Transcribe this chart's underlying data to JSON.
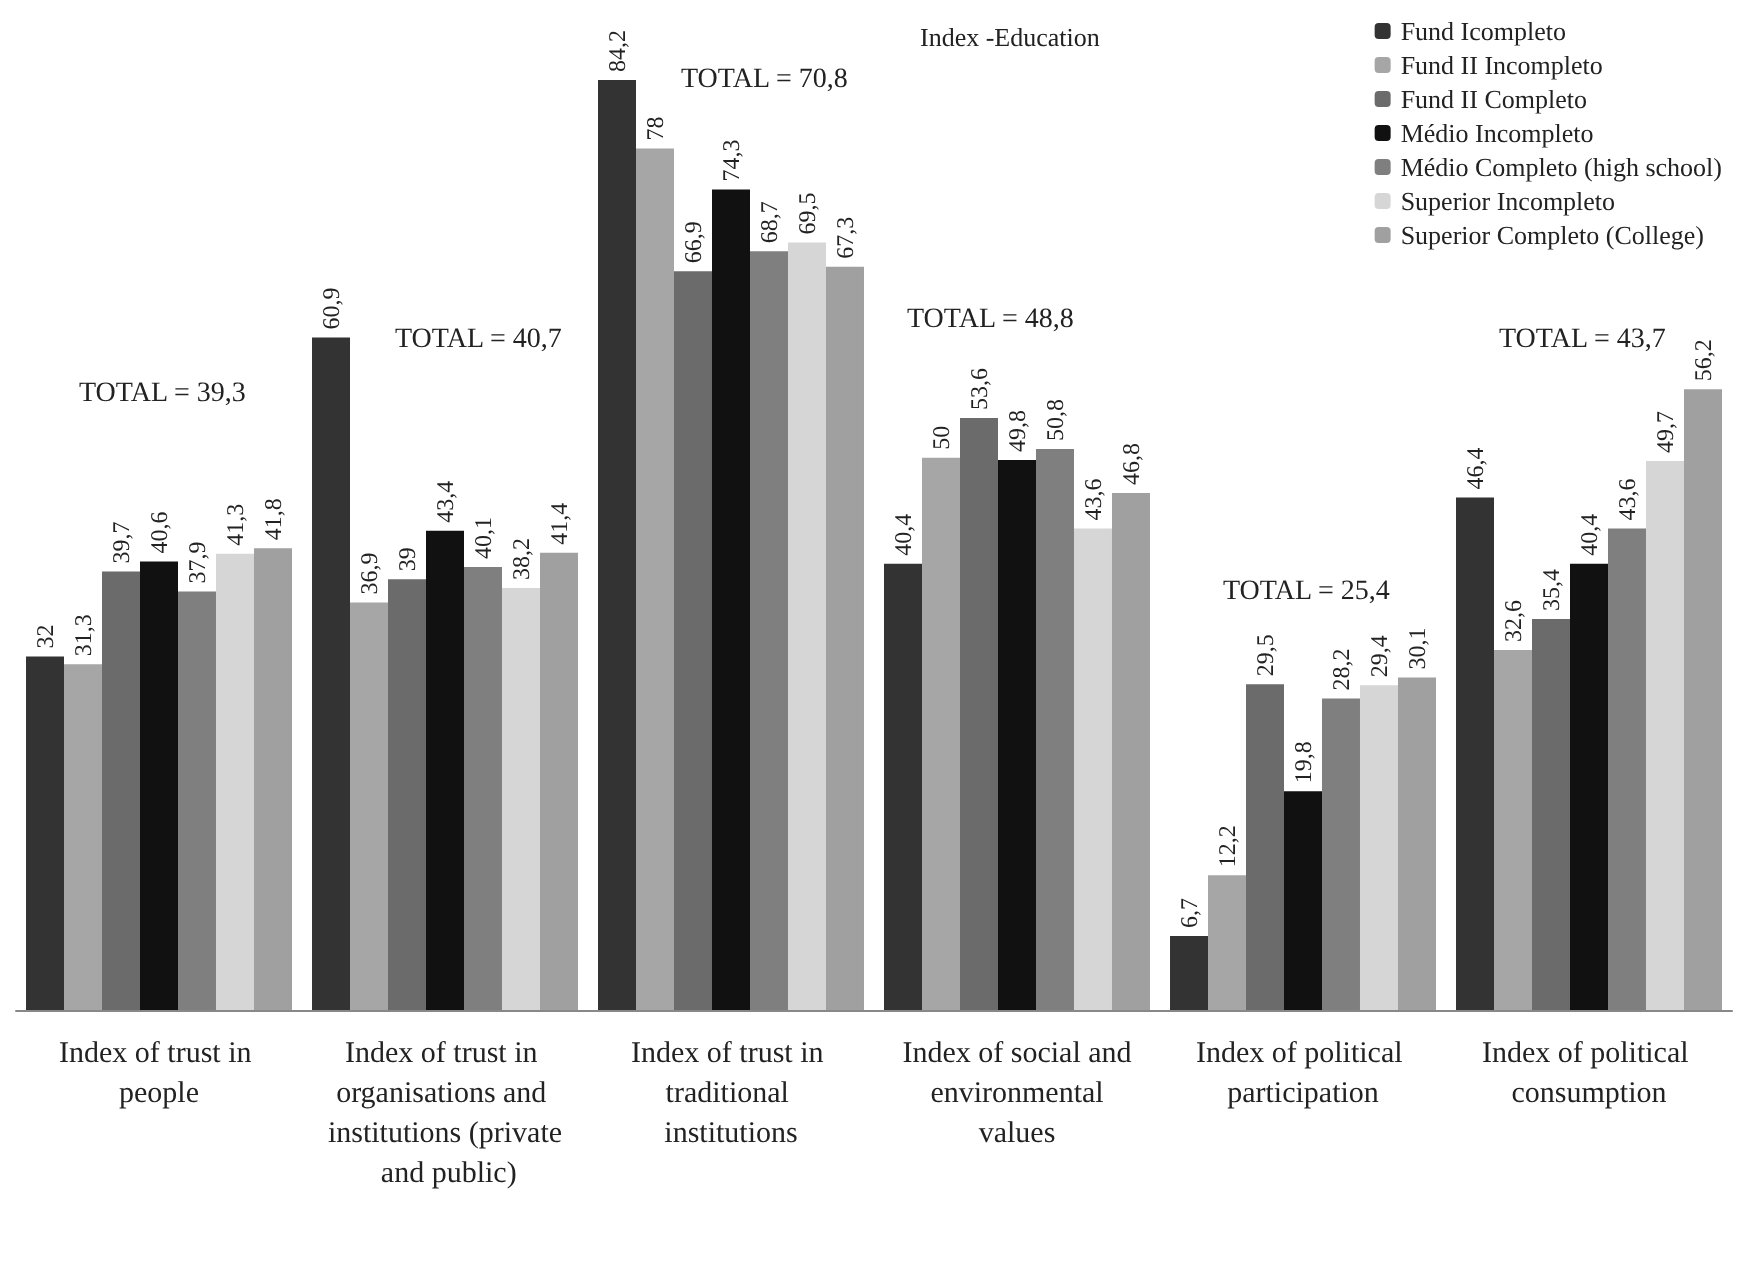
{
  "chart_data": {
    "type": "bar",
    "categories": [
      "Index of trust in people",
      "Index of trust in organisations and institutions (private and public)",
      "Index of trust in traditional institutions",
      "Index of social and environmental values",
      "Index of political participation",
      "Index of political consumption"
    ],
    "series": [
      {
        "name": "Fund Icompleto",
        "color": "#333333",
        "values": [
          32,
          60.9,
          84.2,
          40.4,
          6.7,
          46.4
        ],
        "value_labels": [
          "32",
          "60,9",
          "84,2",
          "40,4",
          "6,7",
          "46,4"
        ]
      },
      {
        "name": "Fund II Incompleto",
        "color": "#a6a6a6",
        "values": [
          31.3,
          36.9,
          78,
          50,
          12.2,
          32.6
        ],
        "value_labels": [
          "31,3",
          "36,9",
          "78",
          "50",
          "12,2",
          "32,6"
        ]
      },
      {
        "name": "Fund II Completo",
        "color": "#6b6b6b",
        "values": [
          39.7,
          39,
          66.9,
          53.6,
          29.5,
          35.4
        ],
        "value_labels": [
          "39,7",
          "39",
          "66,9",
          "53,6",
          "29,5",
          "35,4"
        ]
      },
      {
        "name": "Médio Incompleto",
        "color": "#111111",
        "values": [
          40.6,
          43.4,
          74.3,
          49.8,
          19.8,
          40.4
        ],
        "value_labels": [
          "40,6",
          "43,4",
          "74,3",
          "49,8",
          "19,8",
          "40,4"
        ]
      },
      {
        "name": "Médio Completo (high school)",
        "color": "#7f7f7f",
        "values": [
          37.9,
          40.1,
          68.7,
          50.8,
          28.2,
          43.6
        ],
        "value_labels": [
          "37,9",
          "40,1",
          "68,7",
          "50,8",
          "28,2",
          "43,6"
        ]
      },
      {
        "name": "Superior Incompleto",
        "color": "#d6d6d6",
        "values": [
          41.3,
          38.2,
          69.5,
          43.6,
          29.4,
          49.7
        ],
        "value_labels": [
          "41,3",
          "38,2",
          "69,5",
          "43,6",
          "29,4",
          "49,7"
        ]
      },
      {
        "name": "Superior Completo (College)",
        "color": "#a0a0a0",
        "values": [
          41.8,
          41.4,
          67.3,
          46.8,
          30.1,
          56.2
        ],
        "value_labels": [
          "41,8",
          "41,4",
          "67,3",
          "46,8",
          "30,1",
          "56,2"
        ]
      }
    ],
    "ylim": [
      0,
      90
    ],
    "tick_labels": "x",
    "grid": false,
    "legend": "top right",
    "annotations": [
      "Index -Education",
      "TOTAL = 39,3",
      "TOTAL = 40,7",
      "TOTAL = 70,8",
      "TOTAL = 48,8",
      "TOTAL = 25,4",
      "TOTAL = 43,7"
    ]
  }
}
